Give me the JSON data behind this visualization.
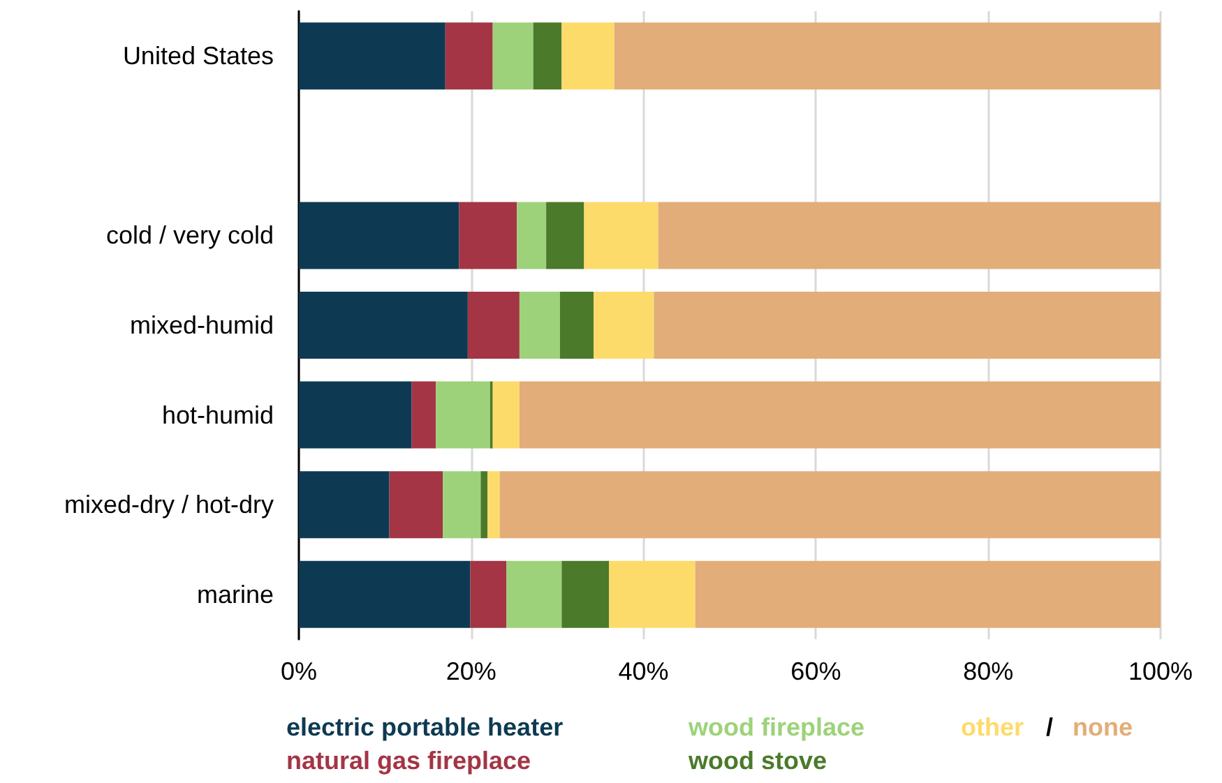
{
  "chart_data": {
    "type": "bar",
    "orientation": "horizontal",
    "stacked": true,
    "categories": [
      "United States",
      null,
      "cold / very cold",
      "mixed-humid",
      "hot-humid",
      "mixed-dry / hot-dry",
      "marine"
    ],
    "series": [
      {
        "name": "electric portable heater",
        "color": "#0d3a52",
        "values": [
          17.0,
          null,
          18.6,
          19.6,
          13.1,
          10.5,
          19.9
        ]
      },
      {
        "name": "natural gas fireplace",
        "color": "#a33545",
        "values": [
          5.5,
          null,
          6.7,
          6.0,
          2.8,
          6.2,
          4.2
        ]
      },
      {
        "name": "wood fireplace",
        "color": "#9dd27a",
        "values": [
          4.7,
          null,
          3.4,
          4.7,
          6.3,
          4.4,
          6.4
        ]
      },
      {
        "name": "wood stove",
        "color": "#4a7a2a",
        "values": [
          3.3,
          null,
          4.4,
          3.9,
          0.3,
          0.8,
          5.5
        ]
      },
      {
        "name": "other",
        "color": "#fddb6a",
        "values": [
          6.1,
          null,
          8.6,
          7.0,
          3.1,
          1.4,
          10.0
        ]
      },
      {
        "name": "none",
        "color": "#e2ad78",
        "values": [
          63.4,
          null,
          58.3,
          58.8,
          74.4,
          76.7,
          54.0
        ]
      }
    ],
    "xlim": [
      0,
      100
    ],
    "xticks": [
      {
        "value": 0,
        "label": "0%"
      },
      {
        "value": 20,
        "label": "20%"
      },
      {
        "value": 40,
        "label": "40%"
      },
      {
        "value": 60,
        "label": "60%"
      },
      {
        "value": 80,
        "label": "80%"
      },
      {
        "value": 100,
        "label": "100%"
      }
    ],
    "grid": "x",
    "legend": "bottom",
    "annotations": [
      "/"
    ]
  }
}
